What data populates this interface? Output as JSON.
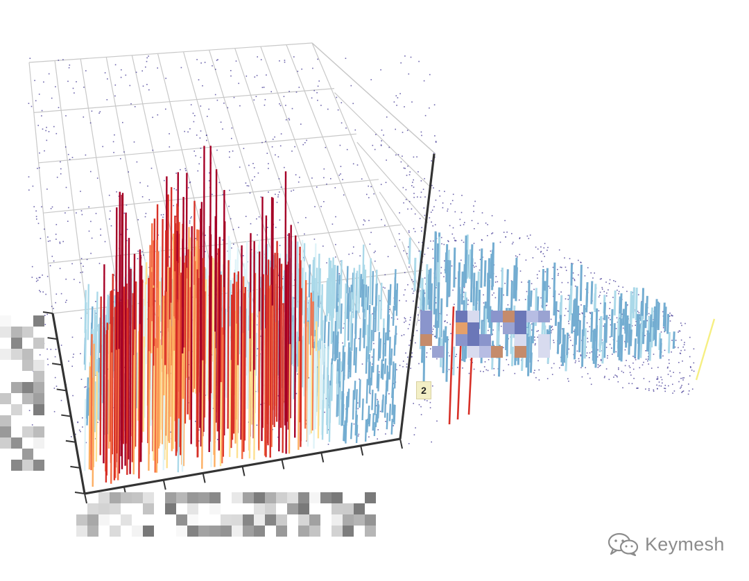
{
  "chart_data": {
    "type": "bar3d",
    "title": "",
    "xlabel": "",
    "ylabel": "",
    "zlabel": "",
    "grid": true,
    "legend": "none",
    "colors": {
      "low": "#74add1",
      "light": "#abd9e9",
      "mid_light": "#e0f3f8",
      "mid": "#fee090",
      "mid_high": "#fdae61",
      "high_orange": "#f46d43",
      "high": "#d73027",
      "max": "#a50026",
      "scatter": "#3a2f8f",
      "axis": "#333333",
      "grid": "#c8c8c8"
    },
    "visible_tick_label": "2",
    "density_peaks": [
      {
        "u": 0.12,
        "v": 0.1,
        "value": 0.78
      },
      {
        "u": 0.38,
        "v": 0.18,
        "value": 0.88
      },
      {
        "u": 0.62,
        "v": 0.12,
        "value": 0.8
      },
      {
        "u": 0.28,
        "v": 0.55,
        "value": 0.45
      }
    ]
  },
  "watermark": {
    "text": "Keymesh",
    "icon": "wechat-icon"
  }
}
